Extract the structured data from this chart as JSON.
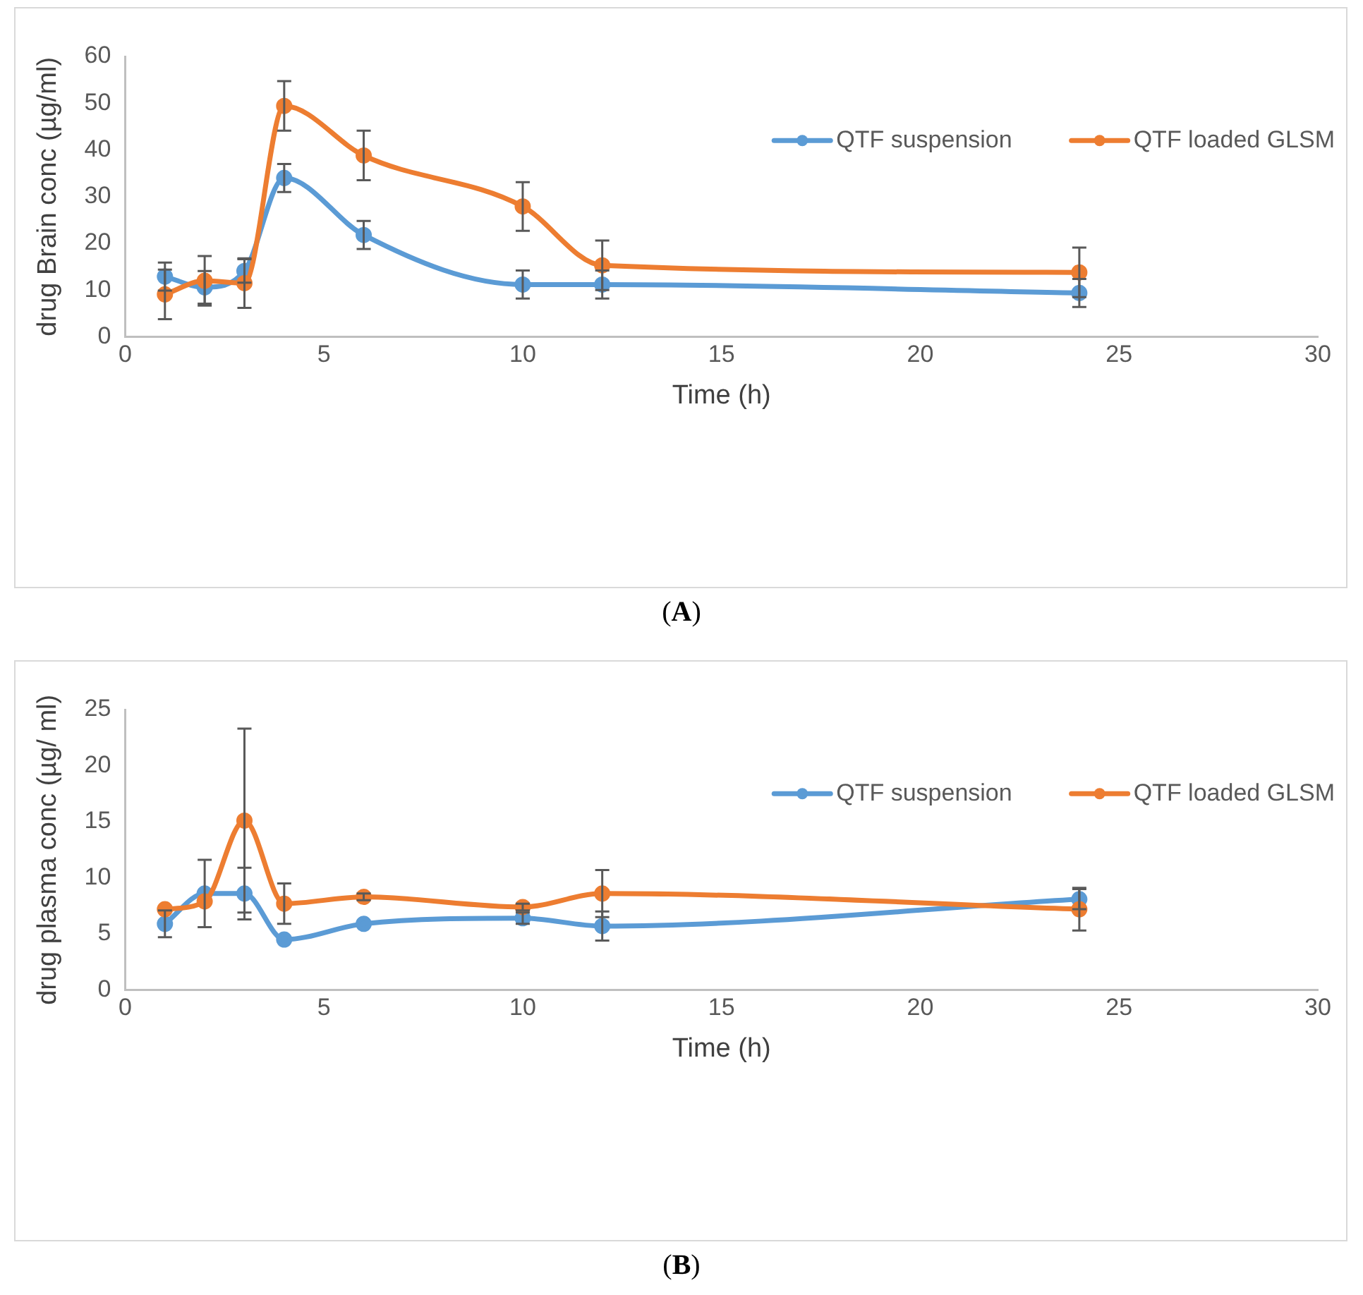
{
  "chart_data": [
    {
      "type": "line",
      "xlabel": "Time (h)",
      "ylabel": "drug Brain conc (µg/ml)",
      "annotations": [
        "(A)"
      ],
      "x": [
        1,
        2,
        3,
        4,
        6,
        10,
        12,
        24
      ],
      "xlim": [
        0,
        30
      ],
      "xticks": [
        0,
        5,
        10,
        15,
        20,
        25,
        30
      ],
      "ylim": [
        0,
        60
      ],
      "yticks": [
        0,
        10,
        20,
        30,
        40,
        50,
        60
      ],
      "grid": false,
      "legend": "top right",
      "marker": "circle",
      "line_style": "solid",
      "series": [
        {
          "name": "QTF suspension",
          "color": "#5b9bd5",
          "values": [
            12.9,
            10.6,
            14.1,
            34,
            21.8,
            11.2,
            11.2,
            9.4
          ],
          "errors": [
            3,
            3.5,
            2.5,
            3,
            3,
            3,
            3,
            3
          ]
        },
        {
          "name": "QTF loaded GLSM",
          "color": "#ed7d31",
          "values": [
            9.1,
            12,
            11.5,
            49.4,
            38.8,
            27.9,
            15.3,
            13.8
          ],
          "errors": [
            5.3,
            5.3,
            5.3,
            5.3,
            5.3,
            5.2,
            5.3,
            5.3
          ]
        }
      ]
    },
    {
      "type": "line",
      "xlabel": "Time (h)",
      "ylabel": "drug plasma conc (µg/ ml)",
      "annotations": [
        "(B)"
      ],
      "x": [
        1,
        2,
        3,
        4,
        6,
        10,
        12,
        24
      ],
      "xlim": [
        0,
        30
      ],
      "xticks": [
        0,
        5,
        10,
        15,
        20,
        25,
        30
      ],
      "ylim": [
        0,
        25
      ],
      "yticks": [
        0,
        5,
        10,
        15,
        20,
        25
      ],
      "grid": false,
      "legend": "top right",
      "marker": "circle",
      "line_style": "solid",
      "series": [
        {
          "name": "QTF suspension",
          "color": "#5b9bd5",
          "values": [
            5.9,
            8.6,
            8.6,
            4.5,
            5.9,
            6.4,
            5.7,
            8.1
          ],
          "errors": [
            1.2,
            3,
            2.3,
            null,
            null,
            0.5,
            1.3,
            0.9
          ]
        },
        {
          "name": "QTF loaded GLSM",
          "color": "#ed7d31",
          "values": [
            7.2,
            7.9,
            15.1,
            7.7,
            8.3,
            7.4,
            8.6,
            7.2
          ],
          "errors": [
            null,
            null,
            8.2,
            1.8,
            0.3,
            0.3,
            2.1,
            1.9
          ]
        }
      ]
    }
  ]
}
